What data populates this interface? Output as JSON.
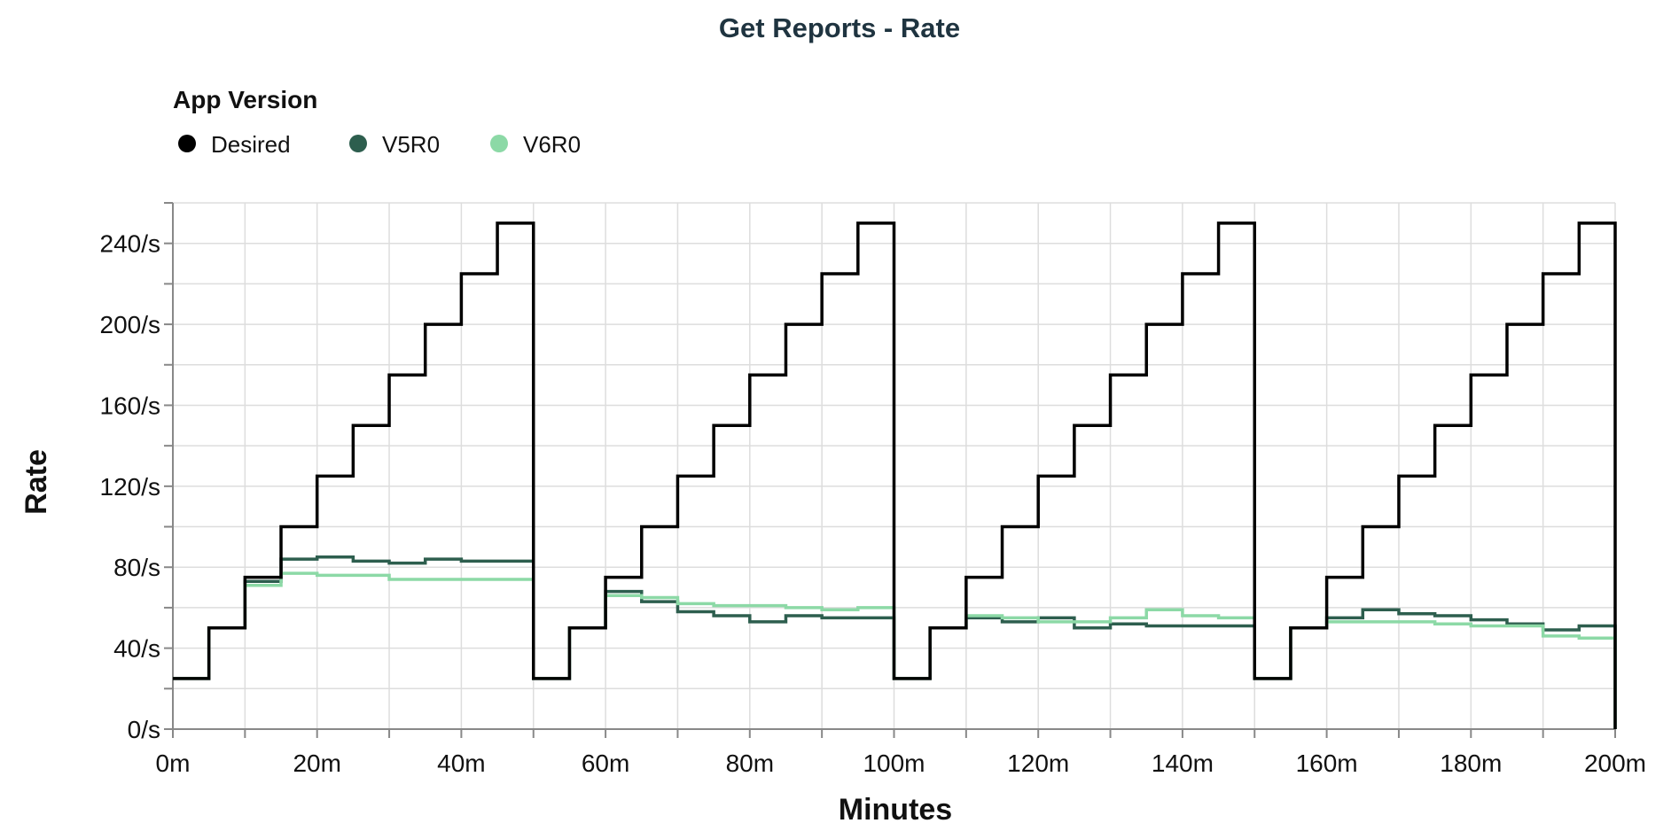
{
  "chart_data": {
    "type": "line",
    "title": "Get Reports - Rate",
    "xlabel": "Minutes",
    "ylabel": "Rate",
    "xlim": [
      0,
      200
    ],
    "ylim": [
      0,
      260
    ],
    "x_ticks": [
      0,
      20,
      40,
      60,
      80,
      100,
      120,
      140,
      160,
      180,
      200
    ],
    "x_tick_labels": [
      "0m",
      "20m",
      "40m",
      "60m",
      "80m",
      "100m",
      "120m",
      "140m",
      "160m",
      "180m",
      "200m"
    ],
    "y_ticks": [
      0,
      40,
      80,
      120,
      160,
      200,
      240
    ],
    "y_tick_labels": [
      "0/s",
      "40/s",
      "80/s",
      "120/s",
      "160/s",
      "200/s",
      "240/s"
    ],
    "grid": true,
    "step": "post",
    "legend": {
      "title": "App Version",
      "position": "top-left",
      "entries": [
        "Desired",
        "V5R0",
        "V6R0"
      ]
    },
    "x": [
      0,
      5,
      10,
      15,
      20,
      25,
      30,
      35,
      40,
      45,
      50,
      55,
      60,
      65,
      70,
      75,
      80,
      85,
      90,
      95,
      100,
      105,
      110,
      115,
      120,
      125,
      130,
      135,
      140,
      145,
      150,
      155,
      160,
      165,
      170,
      175,
      180,
      185,
      190,
      195,
      200
    ],
    "series": [
      {
        "name": "Desired",
        "color": "#000000",
        "values": [
          25,
          50,
          75,
          100,
          125,
          150,
          175,
          200,
          225,
          250,
          25,
          50,
          75,
          100,
          125,
          150,
          175,
          200,
          225,
          250,
          25,
          50,
          75,
          100,
          125,
          150,
          175,
          200,
          225,
          250,
          25,
          50,
          75,
          100,
          125,
          150,
          175,
          200,
          225,
          250,
          0
        ]
      },
      {
        "name": "V5R0",
        "color": "#2d5e4e",
        "values": [
          25,
          50,
          73,
          84,
          85,
          83,
          82,
          84,
          83,
          83,
          25,
          50,
          68,
          63,
          58,
          56,
          53,
          56,
          55,
          55,
          25,
          50,
          55,
          53,
          55,
          50,
          52,
          51,
          51,
          51,
          25,
          50,
          55,
          59,
          57,
          56,
          54,
          52,
          49,
          51,
          0
        ]
      },
      {
        "name": "V6R0",
        "color": "#8cd9a6",
        "values": [
          25,
          50,
          71,
          77,
          76,
          76,
          74,
          74,
          74,
          74,
          25,
          50,
          66,
          65,
          62,
          61,
          61,
          60,
          59,
          60,
          25,
          50,
          56,
          55,
          53,
          53,
          55,
          59,
          56,
          55,
          25,
          50,
          53,
          53,
          53,
          52,
          51,
          51,
          46,
          45,
          0
        ]
      }
    ]
  }
}
